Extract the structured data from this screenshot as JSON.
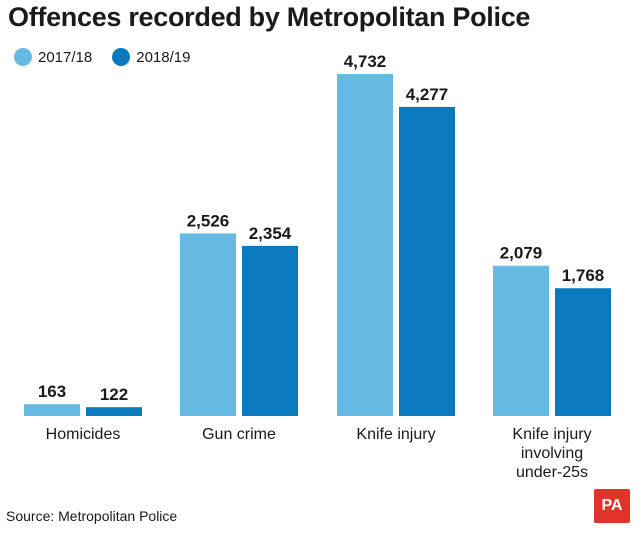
{
  "title": "Offences recorded by Metropolitan Police",
  "source": "Source: Metropolitan Police",
  "logo": "PA",
  "colors": {
    "series1": "#66b9e2",
    "series2": "#0a79bd"
  },
  "chart_data": {
    "type": "bar",
    "title": "Offences recorded by Metropolitan Police",
    "categories": [
      [
        "Homicides"
      ],
      [
        "Gun crime"
      ],
      [
        "Knife injury"
      ],
      [
        "Knife injury",
        "involving",
        "under-25s"
      ]
    ],
    "series": [
      {
        "name": "2017/18",
        "values": [
          163,
          2526,
          4732,
          2079
        ],
        "labels": [
          "163",
          "2,526",
          "4,732",
          "2,079"
        ]
      },
      {
        "name": "2018/19",
        "values": [
          122,
          2354,
          4277,
          1768
        ],
        "labels": [
          "122",
          "2,354",
          "4,277",
          "1,768"
        ]
      }
    ],
    "legend": "top-left",
    "grid": false
  }
}
